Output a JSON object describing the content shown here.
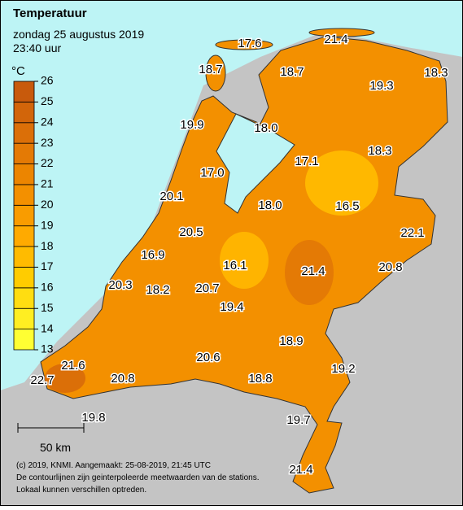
{
  "header": {
    "title": "Temperatuur",
    "date": "zondag 25 augustus 2019",
    "time": "23:40 uur"
  },
  "legend": {
    "unit": "°C",
    "ticks": [
      13,
      14,
      15,
      16,
      17,
      18,
      19,
      20,
      21,
      22,
      23,
      24,
      25,
      26
    ],
    "colors": [
      "#ffff33",
      "#ffee22",
      "#ffdd11",
      "#ffcc00",
      "#ffbb00",
      "#ffaa00",
      "#f99c00",
      "#f39000",
      "#ec8500",
      "#e47a05",
      "#db6f08",
      "#d2650a",
      "#c85a0c"
    ]
  },
  "stations": [
    {
      "label": "17.6"
    },
    {
      "label": "21.4"
    },
    {
      "label": "18.7"
    },
    {
      "label": "18.7"
    },
    {
      "label": "19.3"
    },
    {
      "label": "18.3"
    },
    {
      "label": "19.9"
    },
    {
      "label": "18.0"
    },
    {
      "label": "17.1"
    },
    {
      "label": "18.3"
    },
    {
      "label": "17.0"
    },
    {
      "label": "20.1"
    },
    {
      "label": "18.0"
    },
    {
      "label": "16.5"
    },
    {
      "label": "22.1"
    },
    {
      "label": "20.5"
    },
    {
      "label": "16.9"
    },
    {
      "label": "16.1"
    },
    {
      "label": "21.4"
    },
    {
      "label": "20.8"
    },
    {
      "label": "20.3"
    },
    {
      "label": "18.2"
    },
    {
      "label": "20.7"
    },
    {
      "label": "19.4"
    },
    {
      "label": "18.9"
    },
    {
      "label": "21.6"
    },
    {
      "label": "20.6"
    },
    {
      "label": "19.2"
    },
    {
      "label": "22.7"
    },
    {
      "label": "20.8"
    },
    {
      "label": "18.8"
    },
    {
      "label": "19.8"
    },
    {
      "label": "19.7"
    },
    {
      "label": "21.4"
    }
  ],
  "scale": {
    "label": "50 km"
  },
  "footer": {
    "line1": "(c) 2019, KNMI. Aangemaakt: 25-08-2019, 21:45 UTC",
    "line2": "De contourlijnen zijn geinterpoleerde meetwaarden van de stations.",
    "line3": "Lokaal kunnen verschillen optreden."
  }
}
